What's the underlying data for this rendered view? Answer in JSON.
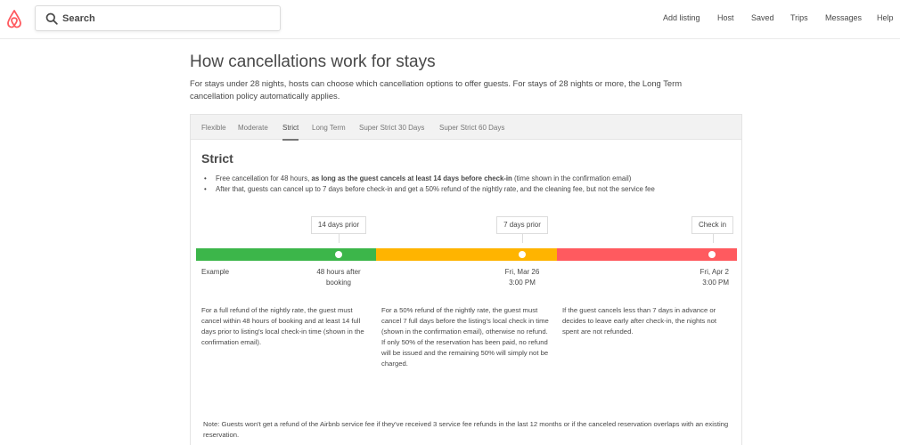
{
  "colors": {
    "brand": "#ff5a5f",
    "green": "#3cb64a",
    "yellow": "#ffb400",
    "red": "#ff5a5f"
  },
  "header": {
    "logo_icon": "airbnb-logo-icon",
    "search": {
      "icon": "search-icon",
      "placeholder": "Search"
    },
    "nav": [
      "Add listing",
      "Host",
      "Saved",
      "Trips",
      "Messages",
      "Help"
    ]
  },
  "page": {
    "title": "How cancellations work for stays",
    "intro": "For stays under 28 nights, hosts can choose which cancellation options to offer guests. For stays of 28 nights or more, the Long Term cancellation policy automatically applies."
  },
  "tabs": [
    {
      "label": "Flexible",
      "active": false
    },
    {
      "label": "Moderate",
      "active": false
    },
    {
      "label": "Strict",
      "active": true
    },
    {
      "label": "Long Term",
      "active": false
    },
    {
      "label": "Super Strict 30 Days",
      "active": false
    },
    {
      "label": "Super Strict 60 Days",
      "active": false
    }
  ],
  "policy": {
    "title": "Strict",
    "rule1_start": "Free cancellation for 48 hours, ",
    "rule1_bold": "as long as the guest cancels at least 14 days before check-in",
    "rule1_end": " (time shown in the confirmation email)",
    "rule2": "After that, guests can cancel up to 7 days before check-in and get a 50% refund of the nightly rate, and the cleaning fee, but not the service fee",
    "bullet": "•"
  },
  "timeline": {
    "callouts": [
      "14 days prior",
      "7 days prior",
      "Check in"
    ],
    "example_label": "Example",
    "points": [
      {
        "line1": "48 hours after",
        "line2": "booking"
      },
      {
        "line1": "Fri, Mar 26",
        "line2": "3:00 PM"
      },
      {
        "line1": "Fri, Apr 2",
        "line2": "3:00 PM"
      }
    ],
    "descriptions": [
      "For a full refund of the nightly rate, the guest must cancel within 48 hours of booking and at least 14 full days prior to listing's local check-in time (shown in the confirmation email).",
      "For a 50% refund of the nightly rate, the guest must cancel 7 full days before the listing's local check in time (shown in the confirmation email), otherwise no refund. If only 50% of the reservation has been paid, no refund will be issued and the remaining 50% will simply not be charged.",
      "If the guest cancels less than 7 days in advance or decides to leave early after check-in, the nights not spent are not refunded."
    ]
  },
  "note": "Note: Guests won't get a refund of the Airbnb service fee if they've received 3 service fee refunds in the last 12 months or if the canceled reservation overlaps with an existing reservation."
}
